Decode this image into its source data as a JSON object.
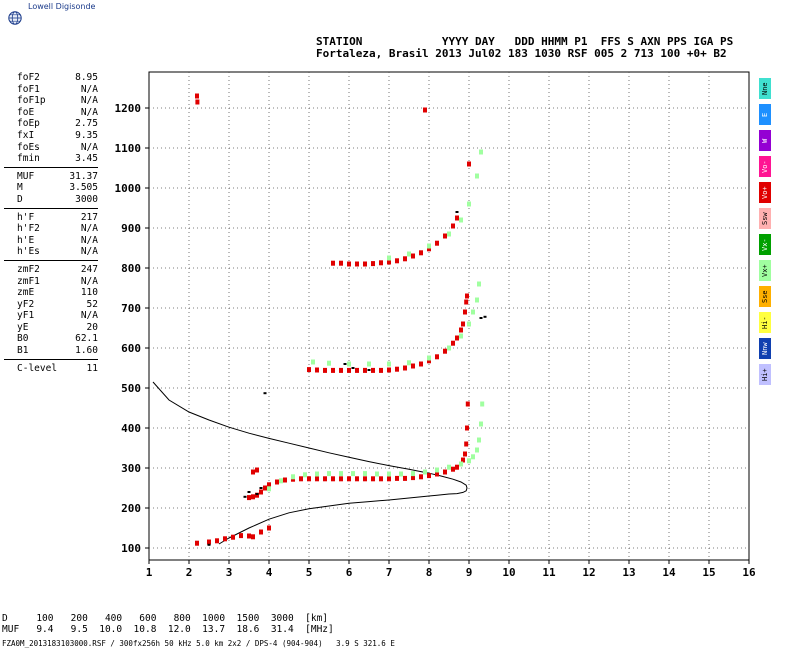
{
  "logo": {
    "text": "Lowell Digisonde",
    "icon": "globe-icon"
  },
  "header": {
    "line1": "STATION            YYYY DAY   DDD HHMM P1  FFS S AXN PPS IGA PS",
    "line2": "Fortaleza, Brasil 2013 Jul02 183 1030 RSF 005 2 713 100 +0+ B2"
  },
  "params": [
    {
      "name": "foF2",
      "value": "8.95"
    },
    {
      "name": "foF1",
      "value": "N/A"
    },
    {
      "name": "foF1p",
      "value": "N/A"
    },
    {
      "name": "foE",
      "value": "N/A"
    },
    {
      "name": "foEp",
      "value": "2.75"
    },
    {
      "name": "fxI",
      "value": "9.35"
    },
    {
      "name": "foEs",
      "value": "N/A"
    },
    {
      "name": "fmin",
      "value": "3.45"
    },
    {
      "sep": true
    },
    {
      "name": "MUF",
      "value": "31.37"
    },
    {
      "name": "M",
      "value": "3.505"
    },
    {
      "name": "D",
      "value": "3000"
    },
    {
      "sep": true
    },
    {
      "name": "h'F",
      "value": "217"
    },
    {
      "name": "h'F2",
      "value": "N/A"
    },
    {
      "name": "h'E",
      "value": "N/A"
    },
    {
      "name": "h'Es",
      "value": "N/A"
    },
    {
      "sep": true
    },
    {
      "name": "zmF2",
      "value": "247"
    },
    {
      "name": "zmF1",
      "value": "N/A"
    },
    {
      "name": "zmE",
      "value": "110"
    },
    {
      "name": "yF2",
      "value": "52"
    },
    {
      "name": "yF1",
      "value": "N/A"
    },
    {
      "name": "yE",
      "value": "20"
    },
    {
      "name": "B0",
      "value": "62.1"
    },
    {
      "name": "B1",
      "value": "1.60"
    },
    {
      "sep": true
    },
    {
      "name": "C-level",
      "value": "11"
    }
  ],
  "legend": [
    {
      "label": "Nne",
      "color": "#40e0d0"
    },
    {
      "label": "E",
      "color": "#1e90ff"
    },
    {
      "label": "W",
      "color": "#9400d3"
    },
    {
      "label": "Vo-",
      "color": "#ff1493"
    },
    {
      "label": "Vo+",
      "color": "#e00000"
    },
    {
      "label": "Ssw",
      "color": "#ffb0b0"
    },
    {
      "label": "Vx-",
      "color": "#00a000"
    },
    {
      "label": "Vx+",
      "color": "#a0ffa0"
    },
    {
      "label": "Sse",
      "color": "#ffb000"
    },
    {
      "label": "Hi-",
      "color": "#ffff40"
    },
    {
      "label": "Nnw",
      "color": "#1040b0"
    },
    {
      "label": "Hi+",
      "color": "#c0c0ff"
    }
  ],
  "chart_data": {
    "type": "scatter",
    "x_ticks": [
      "1",
      "2",
      "3",
      "4",
      "5",
      "6",
      "7",
      "8",
      "9",
      "10",
      "11",
      "12",
      "13",
      "14",
      "15",
      "16"
    ],
    "y_ticks": [
      "100",
      "200",
      "300",
      "400",
      "500",
      "600",
      "700",
      "800",
      "900",
      "1000",
      "1100",
      "1200"
    ],
    "xlim": [
      1,
      16
    ],
    "ylim": [
      70,
      1290
    ],
    "grid": true,
    "series": [
      {
        "color": "#e00000",
        "x": [
          3.5,
          3.6,
          3.7,
          3.8,
          3.9,
          4.0,
          4.2,
          4.4,
          4.6,
          4.8,
          5.0,
          5.2,
          5.4,
          5.6,
          5.8,
          6.0,
          6.2,
          6.4,
          6.6,
          6.8,
          7.0,
          7.2,
          7.4,
          7.6,
          7.8,
          8.0,
          8.2,
          8.4,
          8.6,
          8.7,
          8.8,
          8.85,
          8.9,
          8.93,
          8.95,
          8.97
        ],
        "y": [
          226,
          228,
          232,
          240,
          250,
          258,
          265,
          270,
          272,
          273,
          273,
          273,
          273,
          273,
          273,
          273,
          273,
          273,
          273,
          273,
          273,
          274,
          274,
          276,
          278,
          281,
          285,
          290,
          297,
          302,
          310,
          320,
          335,
          360,
          400,
          460
        ]
      },
      {
        "color": "#a0ffa0",
        "x": [
          4.0,
          4.3,
          4.6,
          4.9,
          5.2,
          5.5,
          5.8,
          6.1,
          6.4,
          6.7,
          7.0,
          7.3,
          7.6,
          7.9,
          8.2,
          8.5,
          8.8,
          9.0,
          9.1,
          9.2,
          9.25,
          9.3,
          9.33
        ],
        "y": [
          248,
          268,
          278,
          283,
          285,
          286,
          286,
          286,
          286,
          285,
          285,
          285,
          286,
          290,
          295,
          302,
          310,
          318,
          328,
          345,
          370,
          410,
          460
        ]
      },
      {
        "color": "#e00000",
        "x": [
          5.0,
          5.2,
          5.4,
          5.6,
          5.8,
          6.0,
          6.2,
          6.4,
          6.6,
          6.8,
          7.0,
          7.2,
          7.4,
          7.6,
          7.8,
          8.0,
          8.2,
          8.4,
          8.6,
          8.7,
          8.8,
          8.85,
          8.9,
          8.93,
          8.95
        ],
        "y": [
          546,
          545,
          544,
          544,
          544,
          544,
          544,
          544,
          544,
          544,
          545,
          547,
          550,
          555,
          560,
          568,
          578,
          592,
          612,
          625,
          645,
          660,
          690,
          715,
          730
        ]
      },
      {
        "color": "#a0ffa0",
        "x": [
          5.1,
          5.5,
          6.0,
          6.5,
          7.0,
          7.5,
          8.0,
          8.5,
          8.8,
          9.0,
          9.1,
          9.2,
          9.25
        ],
        "y": [
          565,
          562,
          560,
          560,
          560,
          563,
          575,
          600,
          630,
          660,
          690,
          720,
          760
        ]
      },
      {
        "color": "#e00000",
        "x": [
          5.6,
          5.8,
          6.0,
          6.2,
          6.4,
          6.6,
          6.8,
          7.0,
          7.2,
          7.4,
          7.6,
          7.8,
          8.0,
          8.2,
          8.4,
          8.6,
          8.7
        ],
        "y": [
          812,
          812,
          810,
          810,
          810,
          811,
          813,
          815,
          818,
          823,
          830,
          838,
          848,
          862,
          880,
          905,
          925
        ]
      },
      {
        "color": "#a0ffa0",
        "x": [
          7.0,
          7.5,
          8.0,
          8.5,
          8.8,
          9.0,
          9.2,
          9.3
        ],
        "y": [
          825,
          835,
          855,
          885,
          920,
          960,
          1030,
          1090
        ]
      },
      {
        "color": "#e00000",
        "x": [
          2.2,
          2.5,
          2.7,
          2.9,
          3.1,
          3.3,
          3.5,
          3.6,
          3.8,
          4.0,
          3.6,
          3.7
        ],
        "y": [
          112,
          115,
          118,
          123,
          127,
          131,
          130,
          128,
          140,
          150,
          290,
          295
        ]
      },
      {
        "color": "#e00000",
        "x": [
          2.2,
          2.21,
          7.9,
          9.0
        ],
        "y": [
          1230,
          1215,
          1195,
          1060
        ]
      },
      {
        "color": "#000000",
        "x": [
          3.4,
          3.5,
          3.7,
          3.8,
          5.9,
          6.1,
          6.5,
          8.7,
          9.3,
          9.4,
          3.9,
          2.5
        ],
        "y": [
          228,
          240,
          235,
          250,
          560,
          550,
          545,
          940,
          675,
          678,
          487,
          108
        ]
      }
    ],
    "profile": {
      "x": [
        1.1,
        1.5,
        2.0,
        2.5,
        3.0,
        3.5,
        4.0,
        4.5,
        5.0,
        5.5,
        6.0,
        6.5,
        7.0,
        7.5,
        8.0,
        8.3,
        8.6,
        8.8,
        8.93,
        8.95,
        8.93,
        8.85,
        8.7,
        8.5,
        8.2,
        8.0,
        7.5,
        7.0,
        6.5,
        6.0,
        5.5,
        5.0,
        4.5,
        4.0,
        3.5,
        3.0,
        2.75
      ],
      "y": [
        515,
        470,
        440,
        420,
        402,
        387,
        374,
        362,
        350,
        338,
        327,
        316,
        306,
        297,
        287,
        280,
        272,
        265,
        257,
        250,
        243,
        239,
        236,
        235,
        232,
        230,
        225,
        220,
        216,
        212,
        205,
        198,
        188,
        172,
        150,
        125,
        110
      ]
    }
  },
  "bottom_table": {
    "row1": "D     100   200   400   600   800  1000  1500  3000  [km]",
    "row2": "MUF   9.4   9.5  10.0  10.8  12.0  13.7  18.6  31.4  [MHz]"
  },
  "footer": "FZA0M_2013183103000.RSF / 300fx256h 50 kHz 5.0 km 2x2 / DPS-4 (904-904)   3.9 S 321.6 E"
}
